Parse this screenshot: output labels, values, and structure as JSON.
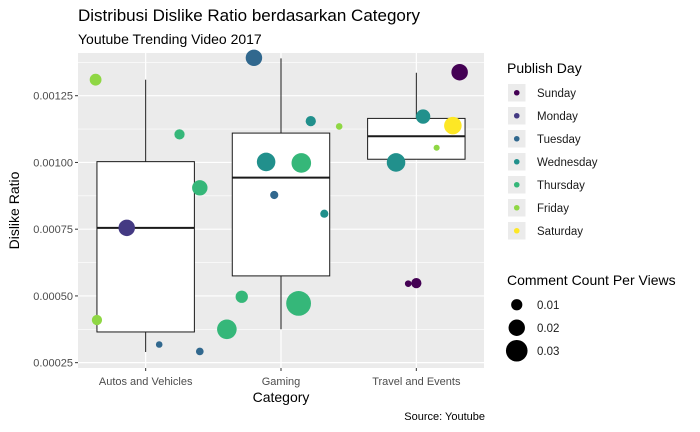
{
  "chart_data": {
    "type": "box+scatter",
    "title": "Distribusi Dislike Ratio berdasarkan Category",
    "subtitle": "Youtube Trending Video 2017",
    "xlabel": "Category",
    "ylabel": "Dislike Ratio",
    "caption": "Source: Youtube",
    "categories": [
      "Autos and Vehicles",
      "Gaming",
      "Travel and Events"
    ],
    "ylim": [
      0.00023,
      0.00141
    ],
    "yticks": [
      0.00025,
      0.0005,
      0.00075,
      0.001,
      0.00125
    ],
    "ytick_labels": [
      "0.00025",
      "0.00050",
      "0.00075",
      "0.00100",
      "0.00125"
    ],
    "grid": true,
    "boxes": [
      {
        "category": "Autos and Vehicles",
        "whisker_low": 0.00029,
        "q1": 0.000365,
        "median": 0.000755,
        "q3": 0.001003,
        "whisker_high": 0.00131
      },
      {
        "category": "Gaming",
        "whisker_low": 0.000375,
        "q1": 0.000575,
        "median": 0.000943,
        "q3": 0.00111,
        "whisker_high": 0.00139
      },
      {
        "category": "Travel and Events",
        "whisker_low": null,
        "q1": 0.001012,
        "median": 0.001098,
        "q3": 0.001165,
        "whisker_high": 0.001336
      }
    ],
    "points": [
      {
        "category": "Autos and Vehicles",
        "jitter": -0.37,
        "y": 0.00131,
        "day": "Friday",
        "comment_ratio": 0.015
      },
      {
        "category": "Autos and Vehicles",
        "jitter": 0.25,
        "y": 0.001105,
        "day": "Thursday",
        "comment_ratio": 0.012
      },
      {
        "category": "Autos and Vehicles",
        "jitter": 0.4,
        "y": 0.000905,
        "day": "Thursday",
        "comment_ratio": 0.022
      },
      {
        "category": "Autos and Vehicles",
        "jitter": -0.14,
        "y": 0.000755,
        "day": "Monday",
        "comment_ratio": 0.024
      },
      {
        "category": "Autos and Vehicles",
        "jitter": -0.36,
        "y": 0.00041,
        "day": "Friday",
        "comment_ratio": 0.012
      },
      {
        "category": "Autos and Vehicles",
        "jitter": 0.1,
        "y": 0.000318,
        "day": "Tuesday",
        "comment_ratio": 0.005
      },
      {
        "category": "Autos and Vehicles",
        "jitter": 0.4,
        "y": 0.000292,
        "day": "Tuesday",
        "comment_ratio": 0.007
      },
      {
        "category": "Gaming",
        "jitter": -0.2,
        "y": 0.001392,
        "day": "Tuesday",
        "comment_ratio": 0.024
      },
      {
        "category": "Gaming",
        "jitter": 0.22,
        "y": 0.001155,
        "day": "Wednesday",
        "comment_ratio": 0.012
      },
      {
        "category": "Gaming",
        "jitter": 0.43,
        "y": 0.001135,
        "day": "Friday",
        "comment_ratio": 0.005
      },
      {
        "category": "Gaming",
        "jitter": -0.11,
        "y": 0.001002,
        "day": "Wednesday",
        "comment_ratio": 0.028
      },
      {
        "category": "Gaming",
        "jitter": 0.15,
        "y": 0.000998,
        "day": "Thursday",
        "comment_ratio": 0.03
      },
      {
        "category": "Gaming",
        "jitter": -0.05,
        "y": 0.000878,
        "day": "Tuesday",
        "comment_ratio": 0.008
      },
      {
        "category": "Gaming",
        "jitter": 0.32,
        "y": 0.000808,
        "day": "Wednesday",
        "comment_ratio": 0.008
      },
      {
        "category": "Gaming",
        "jitter": -0.29,
        "y": 0.000497,
        "day": "Thursday",
        "comment_ratio": 0.016
      },
      {
        "category": "Gaming",
        "jitter": 0.13,
        "y": 0.000472,
        "day": "Thursday",
        "comment_ratio": 0.04
      },
      {
        "category": "Gaming",
        "jitter": -0.4,
        "y": 0.000375,
        "day": "Thursday",
        "comment_ratio": 0.03
      },
      {
        "category": "Travel and Events",
        "jitter": 0.32,
        "y": 0.001338,
        "day": "Sunday",
        "comment_ratio": 0.024
      },
      {
        "category": "Travel and Events",
        "jitter": 0.05,
        "y": 0.001172,
        "day": "Wednesday",
        "comment_ratio": 0.02
      },
      {
        "category": "Travel and Events",
        "jitter": 0.27,
        "y": 0.001138,
        "day": "Saturday",
        "comment_ratio": 0.026
      },
      {
        "category": "Travel and Events",
        "jitter": 0.15,
        "y": 0.001055,
        "day": "Friday",
        "comment_ratio": 0.004
      },
      {
        "category": "Travel and Events",
        "jitter": -0.15,
        "y": 0.001,
        "day": "Wednesday",
        "comment_ratio": 0.028
      },
      {
        "category": "Travel and Events",
        "jitter": 0.0,
        "y": 0.000548,
        "day": "Sunday",
        "comment_ratio": 0.012
      },
      {
        "category": "Travel and Events",
        "jitter": -0.06,
        "y": 0.000546,
        "day": "Sunday",
        "comment_ratio": 0.005
      }
    ],
    "color_legend": {
      "title": "Publish Day",
      "entries": [
        {
          "label": "Sunday",
          "color": "#440154"
        },
        {
          "label": "Monday",
          "color": "#443A83"
        },
        {
          "label": "Tuesday",
          "color": "#31688E"
        },
        {
          "label": "Wednesday",
          "color": "#21908C"
        },
        {
          "label": "Thursday",
          "color": "#35B779"
        },
        {
          "label": "Friday",
          "color": "#8FD744"
        },
        {
          "label": "Saturday",
          "color": "#FDE725"
        }
      ]
    },
    "size_legend": {
      "title": "Comment Count Per Views",
      "entries": [
        {
          "label": "0.01",
          "value": 0.01
        },
        {
          "label": "0.02",
          "value": 0.02
        },
        {
          "label": "0.03",
          "value": 0.03
        }
      ]
    },
    "colors": {
      "panel": "#EBEBEB",
      "grid": "#FFFFFF",
      "box_fill": "#FFFFFF",
      "box_line": "#1A1A1A"
    }
  }
}
